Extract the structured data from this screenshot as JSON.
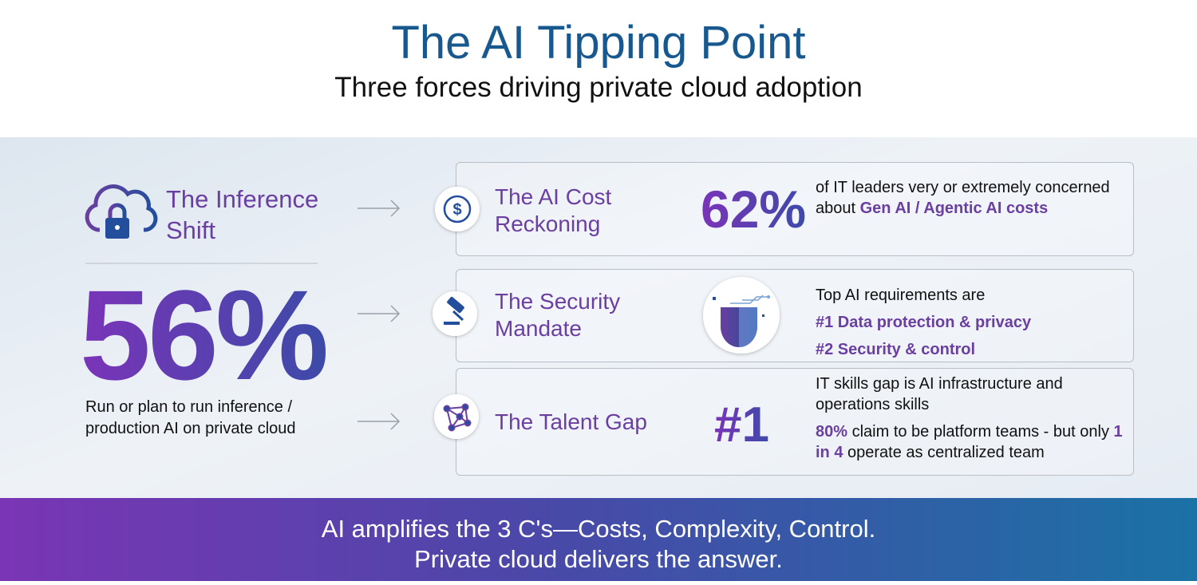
{
  "header": {
    "title": "The AI Tipping Point",
    "subtitle": "Three forces driving private cloud adoption"
  },
  "left": {
    "title": "The Inference Shift",
    "stat": "56%",
    "caption": "Run or plan to run inference / production AI on private cloud"
  },
  "rows": [
    {
      "title": "The AI Cost Reckoning",
      "stat": "62%",
      "description": [
        [
          {
            "text": "of IT leaders very or extremely concerned about ",
            "bold": false
          },
          {
            "text": "Gen AI / Agentic AI costs",
            "bold": true
          }
        ]
      ]
    },
    {
      "title": "The Security Mandate",
      "description": [
        [
          {
            "text": "Top AI requirements are",
            "bold": false
          }
        ],
        [
          {
            "text": "#1 Data protection & privacy",
            "bold": true
          }
        ],
        [
          {
            "text": "#2 Security & control",
            "bold": true
          }
        ]
      ]
    },
    {
      "title": "The Talent Gap",
      "stat": "#1",
      "description": [
        [
          {
            "text": "IT skills gap is AI infrastructure and operations skills",
            "bold": false
          }
        ],
        [
          {
            "text": "80%",
            "bold": true
          },
          {
            "text": " claim to be platform teams - but only ",
            "bold": false
          },
          {
            "text": "1 in 4",
            "bold": true
          },
          {
            "text": " operate as centralized team",
            "bold": false
          }
        ]
      ]
    }
  ],
  "footer": {
    "lines": [
      "AI amplifies the 3 C's—Costs, Complexity, Control.",
      "Private cloud delivers the answer."
    ]
  }
}
